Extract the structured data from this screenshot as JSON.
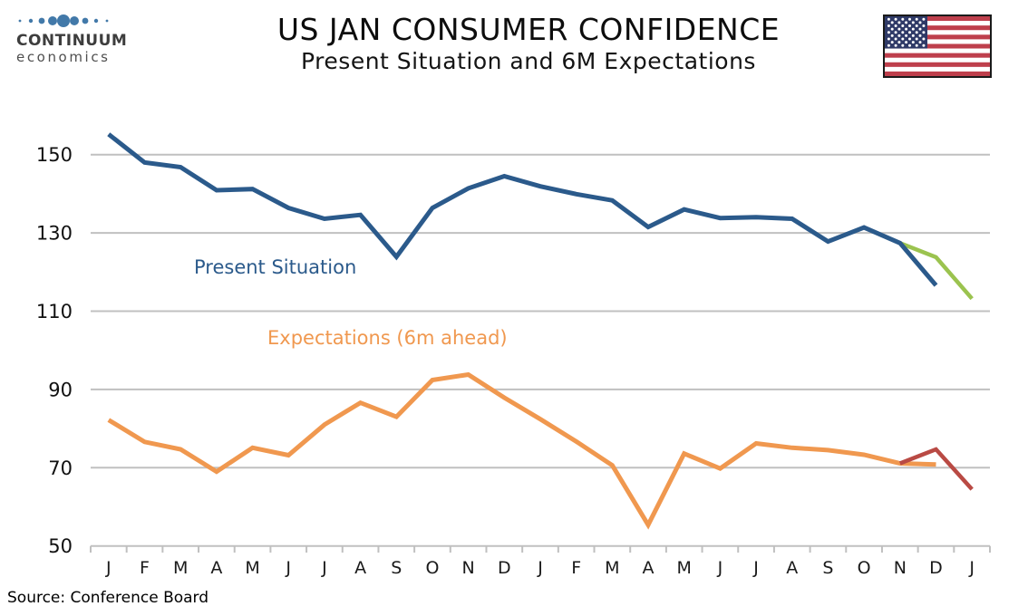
{
  "header": {
    "title": "US JAN CONSUMER CONFIDENCE",
    "subtitle": "Present Situation and 6M Expectations",
    "logo": {
      "line1": "CONTINUUM",
      "line2": "economics"
    }
  },
  "source": "Source: Conference Board",
  "colors": {
    "present_situation": "#2B5A8B",
    "present_situation_new": "#9BC34F",
    "expectations": "#F0984F",
    "expectations_new": "#B94A44",
    "grid": "#C0C0C0",
    "axis_text": "#1a1a1a",
    "logo_blue": "#4279A9",
    "flag_red": "#BE3F4C",
    "flag_blue": "#2F3A67"
  },
  "chart_data": {
    "type": "line",
    "x_labels": [
      "J",
      "F",
      "M",
      "A",
      "M",
      "J",
      "J",
      "A",
      "S",
      "O",
      "N",
      "D",
      "J",
      "F",
      "M",
      "A",
      "M",
      "J",
      "J",
      "A",
      "S",
      "O",
      "N",
      "D",
      "J"
    ],
    "yticks": [
      150,
      130,
      110,
      90,
      70,
      50
    ],
    "ylim": [
      50,
      157.5
    ],
    "grid": true,
    "legend_position": "inline-annotations",
    "series": [
      {
        "id": "present-situation",
        "name": "Present Situation",
        "color": "#2B5A8B",
        "start_index": 0,
        "values": [
          155.2,
          148.0,
          146.8,
          140.9,
          141.2,
          136.4,
          133.6,
          134.6,
          123.9,
          136.4,
          141.4,
          144.5,
          141.9,
          139.9,
          138.3,
          131.5,
          136.0,
          133.8,
          134.0,
          133.6,
          127.8,
          131.4,
          127.4,
          116.6
        ]
      },
      {
        "id": "present-situation-latest",
        "name": "Present Situation (latest)",
        "color": "#9BC34F",
        "start_index": 22,
        "values": [
          127.4,
          123.8,
          113.2
        ]
      },
      {
        "id": "expectations-6m",
        "name": "Expectations (6m ahead)",
        "color": "#F0984F",
        "start_index": 0,
        "values": [
          82.2,
          76.6,
          74.7,
          69.0,
          75.1,
          73.2,
          81.0,
          86.6,
          83.0,
          92.4,
          93.8,
          87.9,
          82.4,
          76.7,
          70.6,
          55.4,
          73.6,
          69.8,
          76.2,
          75.1,
          74.5,
          73.3,
          71.1,
          70.8
        ]
      },
      {
        "id": "expectations-6m-latest",
        "name": "Expectations (6m ahead, latest)",
        "color": "#B94A44",
        "start_index": 22,
        "values": [
          71.1,
          74.7,
          64.5
        ]
      }
    ],
    "annotations": [
      {
        "text": "Present Situation",
        "color": "#2B5A8B"
      },
      {
        "text": "Expectations (6m ahead)",
        "color": "#F0984F"
      }
    ]
  }
}
